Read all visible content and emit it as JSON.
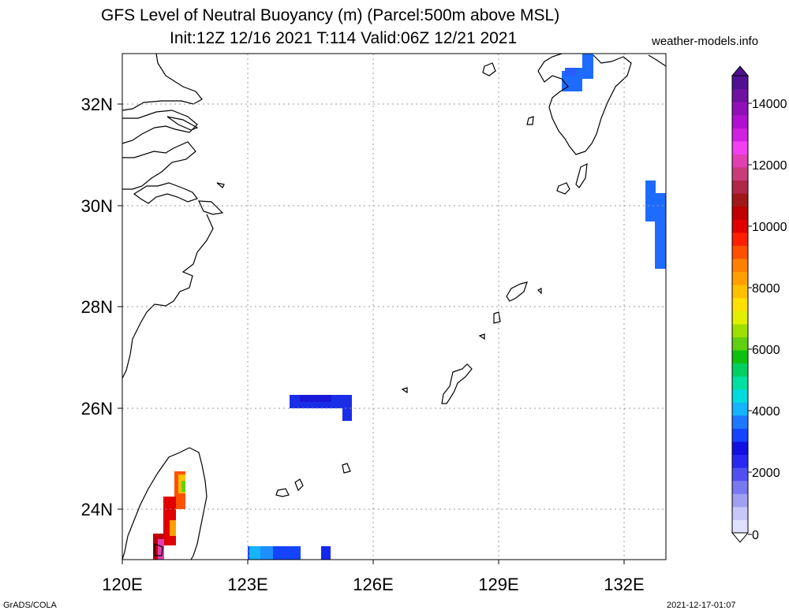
{
  "header": {
    "title_line1": "GFS Level of Neutral Buoyancy (m) (Parcel:500m above MSL)",
    "title_line2": "Init:12Z 12/16 2021 T:114 Valid:06Z 12/21 2021",
    "site": "weather-models.info"
  },
  "axes": {
    "lon_labels": [
      "120E",
      "123E",
      "126E",
      "129E",
      "132E"
    ],
    "lat_labels": [
      "32N",
      "30N",
      "28N",
      "26N",
      "24N"
    ]
  },
  "colorbar": {
    "labels": [
      "14000",
      "12000",
      "10000",
      "8000",
      "6000",
      "4000",
      "2000",
      "0"
    ],
    "colors": [
      "#e0e0ff",
      "#c8c8f8",
      "#a0a0f0",
      "#7878f0",
      "#5050f0",
      "#2828f0",
      "#1010e0",
      "#1444ff",
      "#1e78ff",
      "#14b4ff",
      "#00dcdc",
      "#00e0a0",
      "#00d060",
      "#10c010",
      "#60d010",
      "#a0e000",
      "#e0f000",
      "#ffe000",
      "#ffc000",
      "#ffa000",
      "#ff8000",
      "#ff5000",
      "#ff2000",
      "#e00000",
      "#c00000",
      "#a01818",
      "#b02848",
      "#c83c78",
      "#e040b0",
      "#f040f0",
      "#d020e0",
      "#b010d0",
      "#9010b8",
      "#7010a0",
      "#501090"
    ]
  },
  "footer": {
    "left": "GrADS/COLA",
    "right": "2021-12-17-01:07"
  }
}
